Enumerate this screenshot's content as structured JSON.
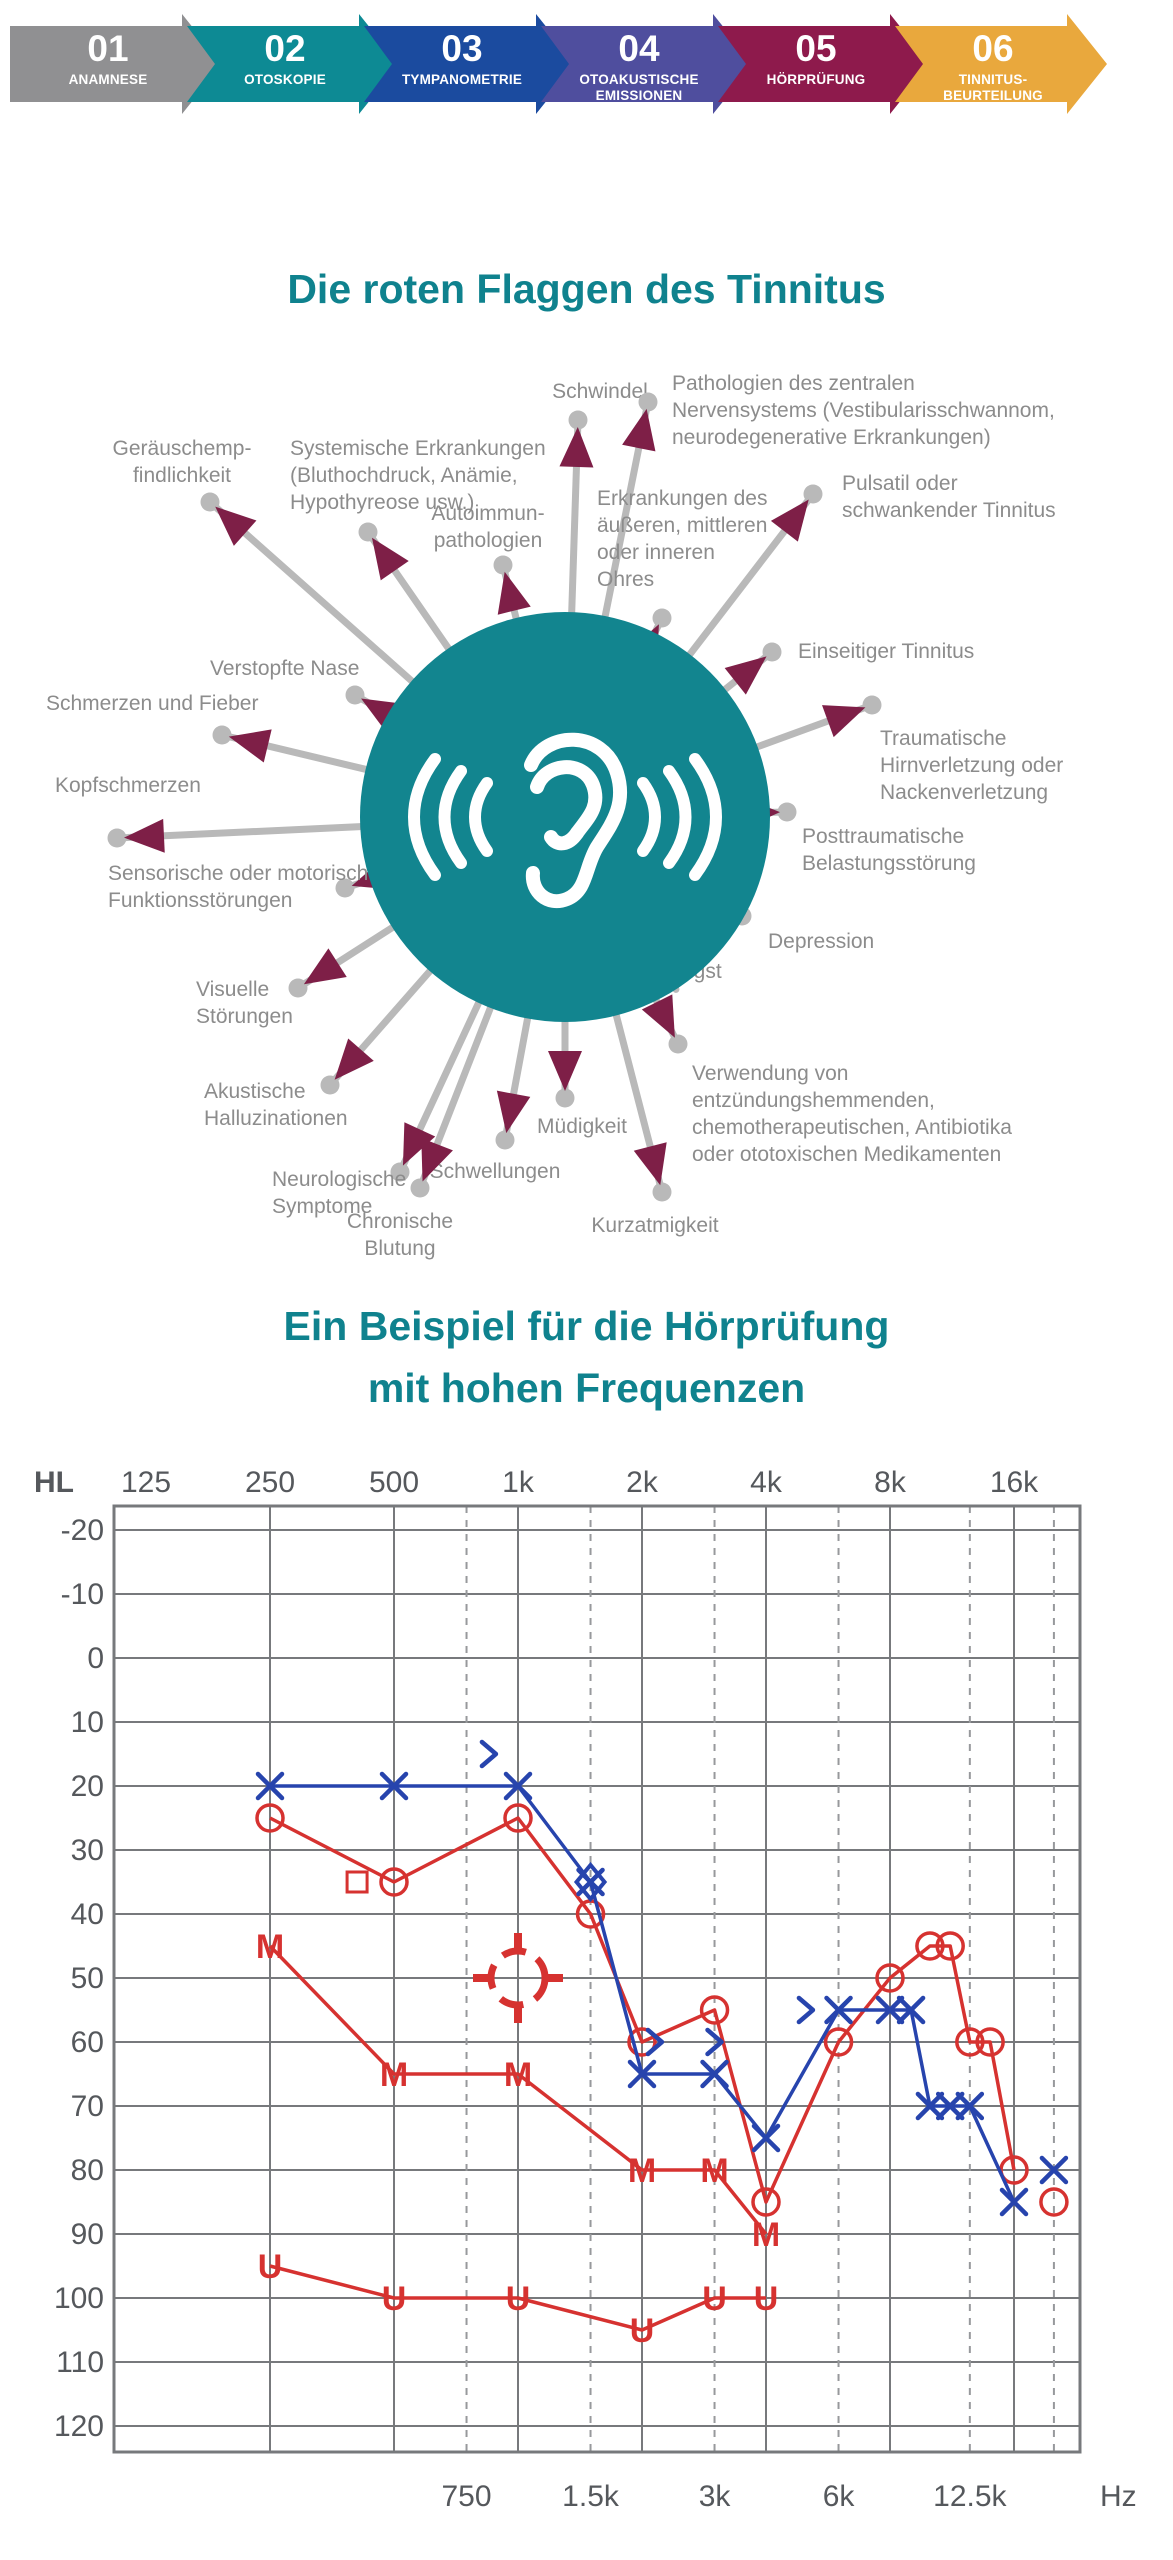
{
  "process_steps": {
    "items": [
      {
        "number": "01",
        "label_lines": [
          "ANAMNESE"
        ],
        "color": "#909092",
        "dark": "#6e6e70"
      },
      {
        "number": "02",
        "label_lines": [
          "OTOSKOPIE"
        ],
        "color": "#0d8a94",
        "dark": "#0a6automatically_replaced"
      },
      {
        "number": "03",
        "label_lines": [
          "TYMPANOMETRIE"
        ],
        "color": "#1b4b9f",
        "dark": "#143a7c"
      },
      {
        "number": "04",
        "label_lines": [
          "OTOAKUSTISCHE",
          "EMISSIONEN"
        ],
        "color": "#4f4e9e",
        "dark": "#3c3b7b"
      },
      {
        "number": "05",
        "label_lines": [
          "HÖRPRÜFUNG"
        ],
        "color": "#8e1a4c",
        "dark": "#6d143a"
      },
      {
        "number": "06",
        "label_lines": [
          "TINNITUS-",
          "BEURTEILUNG"
        ],
        "color": "#e9a83d",
        "dark": "#c0872e"
      }
    ]
  },
  "red_flags": {
    "title": "Die roten Flaggen des Tinnitus",
    "colors": {
      "circle": "#12858f",
      "spoke": "#b9b9b9",
      "flag": "#7e1f47",
      "label": "#8c8c8c"
    },
    "ear_icon": "ear-with-sound-waves-icon",
    "items": [
      {
        "lines": [
          "Schwindel"
        ]
      },
      {
        "lines": [
          "Pathologien des zentralen",
          "Nervensystems (Vestibularisschwannom,",
          "neurodegenerative Erkrankungen)"
        ]
      },
      {
        "lines": [
          "Erkrankungen des",
          "äußeren, mittleren",
          "oder inneren",
          "Ohres"
        ]
      },
      {
        "lines": [
          "Pulsatil oder",
          "schwankender Tinnitus"
        ]
      },
      {
        "lines": [
          "Einseitiger Tinnitus"
        ]
      },
      {
        "lines": [
          "Traumatische",
          "Hirnverletzung oder",
          "Nackenverletzung"
        ]
      },
      {
        "lines": [
          "Posttraumatische",
          "Belastungsstörung"
        ]
      },
      {
        "lines": [
          "Depression"
        ]
      },
      {
        "lines": [
          "Angst"
        ]
      },
      {
        "lines": [
          "Verwendung von",
          "entzündungshemmenden,",
          "chemotherapeutischen, Antibiotika",
          "oder ototoxischen Medikamenten"
        ]
      },
      {
        "lines": [
          "Kurzatmigkeit"
        ]
      },
      {
        "lines": [
          "Müdigkeit"
        ]
      },
      {
        "lines": [
          "Schwellungen"
        ]
      },
      {
        "lines": [
          "Chronische",
          "Blutung"
        ]
      },
      {
        "lines": [
          "Neurologische",
          "Symptome"
        ]
      },
      {
        "lines": [
          "Akustische",
          "Halluzinationen"
        ]
      },
      {
        "lines": [
          "Visuelle",
          "Störungen"
        ]
      },
      {
        "lines": [
          "Sensorische oder motorische",
          "Funktionsstörungen"
        ]
      },
      {
        "lines": [
          "Kopfschmerzen"
        ]
      },
      {
        "lines": [
          "Schmerzen und Fieber"
        ]
      },
      {
        "lines": [
          "Verstopfte Nase"
        ]
      },
      {
        "lines": [
          "Geräuschemp-",
          "findlichkeit"
        ]
      },
      {
        "lines": [
          "Systemische Erkrankungen",
          "(Bluthochdruck, Anämie,",
          "Hypothyreose usw.)"
        ]
      },
      {
        "lines": [
          "Autoimmun-",
          "pathologien"
        ]
      }
    ]
  },
  "audiogram": {
    "title_lines": [
      "Ein Beispiel für die Hörprüfung",
      "mit hohen Frequenzen"
    ],
    "hl": "HL",
    "hz": "Hz",
    "chart_data": {
      "type": "line",
      "x_axis": "frequency Hz (log scale)",
      "y_axis": "hearing level dB HL",
      "ylim": [
        -20,
        120
      ],
      "grid": "on",
      "top_ticks": [
        [
          "125",
          125
        ],
        [
          "250",
          250
        ],
        [
          "500",
          500
        ],
        [
          "1k",
          1000
        ],
        [
          "2k",
          2000
        ],
        [
          "4k",
          4000
        ],
        [
          "8k",
          8000
        ],
        [
          "16k",
          16000
        ]
      ],
      "bottom_ticks": [
        [
          "750",
          750
        ],
        [
          "1.5k",
          1500
        ],
        [
          "3k",
          3000
        ],
        [
          "6k",
          6000
        ],
        [
          "12.5k",
          12500
        ]
      ],
      "y_ticks": [
        -20,
        -10,
        0,
        10,
        20,
        30,
        40,
        50,
        60,
        70,
        80,
        90,
        100,
        110,
        120
      ],
      "colors": {
        "red": "#d63230",
        "blue": "#2744ad",
        "grid": "#77797c"
      },
      "series": [
        {
          "name": "air-conduction-circles",
          "color": "red",
          "marker": "circle",
          "connected": true,
          "points": [
            [
              250,
              25
            ],
            [
              500,
              35
            ],
            [
              1000,
              25
            ],
            [
              1500,
              40
            ],
            [
              2000,
              60
            ],
            [
              3000,
              55
            ],
            [
              4000,
              85
            ],
            [
              6000,
              60
            ],
            [
              8000,
              50
            ],
            [
              10000,
              45
            ],
            [
              11200,
              45
            ],
            [
              12500,
              60
            ],
            [
              14000,
              60
            ],
            [
              16000,
              80
            ]
          ]
        },
        {
          "name": "air-conduction-circle-isolated",
          "color": "red",
          "marker": "circle",
          "connected": false,
          "points": [
            [
              20000,
              85
            ]
          ]
        },
        {
          "name": "square-marker",
          "color": "red",
          "marker": "square",
          "connected": false,
          "points": [
            [
              460,
              35
            ]
          ]
        },
        {
          "name": "masked-M",
          "color": "red",
          "marker": "M",
          "connected": true,
          "points": [
            [
              250,
              45
            ],
            [
              500,
              65
            ],
            [
              1000,
              65
            ],
            [
              2000,
              80
            ],
            [
              3000,
              80
            ],
            [
              4000,
              90
            ]
          ]
        },
        {
          "name": "uncomfortable-U",
          "color": "red",
          "marker": "U",
          "connected": true,
          "points": [
            [
              250,
              95
            ],
            [
              500,
              100
            ],
            [
              1000,
              100
            ],
            [
              2000,
              105
            ],
            [
              3000,
              100
            ],
            [
              4000,
              100
            ]
          ]
        },
        {
          "name": "air-conduction-X",
          "color": "blue",
          "marker": "X",
          "connected": true,
          "points": [
            [
              250,
              20
            ],
            [
              500,
              20
            ],
            [
              1000,
              20
            ],
            [
              1500,
              35
            ],
            [
              2000,
              65
            ],
            [
              3000,
              65
            ],
            [
              4000,
              75
            ],
            [
              6000,
              55
            ],
            [
              8000,
              55
            ],
            [
              9000,
              55
            ],
            [
              10000,
              70
            ],
            [
              11200,
              70
            ],
            [
              12500,
              70
            ],
            [
              16000,
              85
            ]
          ]
        },
        {
          "name": "air-conduction-X-isolated",
          "color": "blue",
          "marker": "X",
          "connected": false,
          "points": [
            [
              20000,
              80
            ]
          ]
        },
        {
          "name": "diamond-marker",
          "color": "blue",
          "marker": "diamond",
          "connected": false,
          "points": [
            [
              1500,
              35
            ]
          ]
        },
        {
          "name": "unmasked-arrows",
          "color": "blue",
          "marker": "gt",
          "connected": false,
          "points": [
            [
              850,
              15
            ],
            [
              2150,
              60
            ],
            [
              3000,
              60
            ],
            [
              5000,
              55
            ]
          ]
        },
        {
          "name": "target-symbol",
          "color": "red",
          "marker": "crosshair",
          "connected": false,
          "points": [
            [
              1000,
              50
            ]
          ]
        }
      ]
    }
  }
}
